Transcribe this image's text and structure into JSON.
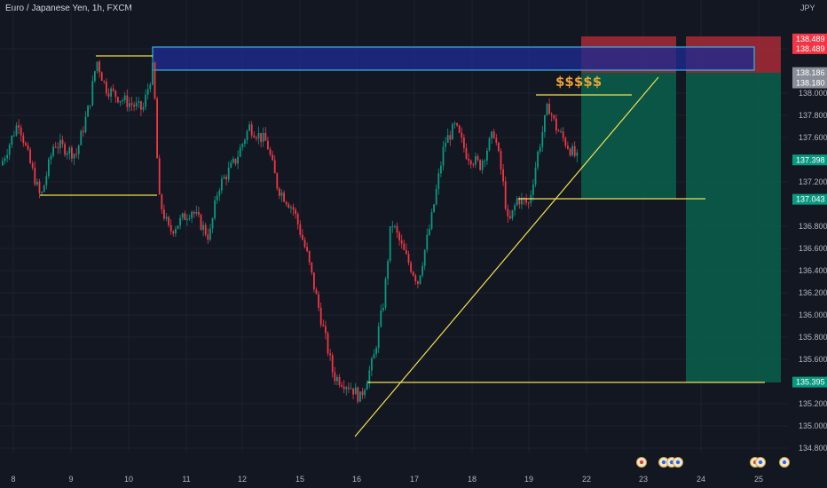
{
  "header": {
    "title": "Euro / Japanese Yen, 1h, FXCM"
  },
  "chart_data": {
    "type": "candlestick",
    "currency": "JPY",
    "ylim": [
      134.75,
      138.75
    ],
    "y_ticks": [
      "138.400",
      "138.000",
      "137.800",
      "137.600",
      "137.200",
      "136.800",
      "136.600",
      "136.400",
      "136.200",
      "136.000",
      "135.800",
      "135.600",
      "135.200",
      "135.000",
      "134.800"
    ],
    "x_ticks": [
      "8",
      "9",
      "10",
      "11",
      "12",
      "15",
      "16",
      "17",
      "18",
      "19",
      "22",
      "23",
      "24",
      "25"
    ],
    "price_labels": [
      {
        "text": "138.489",
        "value": 138.489,
        "color": "#f23645"
      },
      {
        "text": "138.489",
        "value": 138.489,
        "color": "#f23645",
        "offset": 1
      },
      {
        "text": "138.186",
        "value": 138.186,
        "color": "#8a8e99"
      },
      {
        "text": "138.180",
        "value": 138.18,
        "color": "#8a8e99",
        "offset": 1
      },
      {
        "text": "137.398",
        "value": 137.398,
        "color": "#089981"
      },
      {
        "text": "137.043",
        "value": 137.043,
        "color": "#089981"
      },
      {
        "text": "135.395",
        "value": 135.395,
        "color": "#089981"
      }
    ],
    "annotation": "$$$$$",
    "colors": {
      "up": "#089981",
      "down": "#f23645",
      "line": "#f5e04a",
      "zone": "#1f2a8f",
      "zone_border": "#31b6e6"
    }
  }
}
